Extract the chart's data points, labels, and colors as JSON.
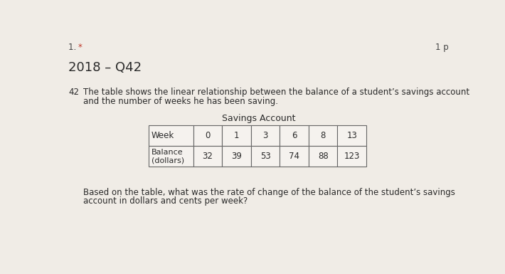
{
  "question_number": "1. *",
  "points_label": "1 p",
  "subtitle": "2018 – Q42",
  "question_label": "42",
  "question_text_line1": "The table shows the linear relationship between the balance of a student’s savings account",
  "question_text_line2": "and the number of weeks he has been saving.",
  "table_title": "Savings Account",
  "col_header": [
    "Week",
    "0",
    "1",
    "3",
    "6",
    "8",
    "13"
  ],
  "row_label": "Balance\n(dollars)",
  "row_values": [
    "32",
    "39",
    "53",
    "74",
    "88",
    "123"
  ],
  "footer_line1": "Based on the table, what was the rate of change of the balance of the student’s savings",
  "footer_line2": "account in dollars and cents per week?",
  "bg_color": "#f0ece6",
  "table_bg": "#f5f2ee",
  "text_color": "#2a2a2a",
  "border_color": "#666666",
  "star_color": "#c0392b",
  "q_num_color": "#444444"
}
